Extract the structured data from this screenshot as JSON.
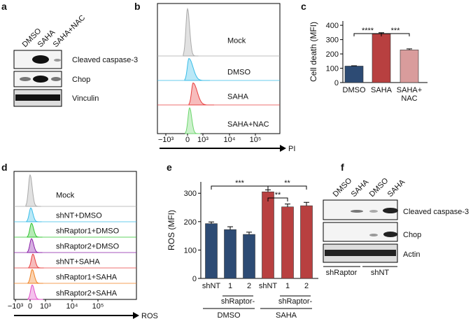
{
  "panels": {
    "a": {
      "letter": "a",
      "lanes": [
        "DMSO",
        "SAHA",
        "SAHA+NAC"
      ],
      "bands": [
        "Cleaved caspase-3",
        "Chop",
        "Vinculin"
      ]
    },
    "b": {
      "letter": "b",
      "samples": [
        "Mock",
        "DMSO",
        "SAHA",
        "SAHA+NAC"
      ],
      "xtick_labels": [
        "−10³",
        "0",
        "10³",
        "10⁴",
        "10⁵"
      ],
      "xlabel": "PI"
    },
    "c": {
      "letter": "c"
    },
    "d": {
      "letter": "d",
      "samples": [
        "Mock",
        "shNT+DMSO",
        "shRaptor1+DMSO",
        "shRaptor2+DMSO",
        "shNT+SAHA",
        "shRaptor1+SAHA",
        "shRaptor2+SAHA"
      ],
      "xtick_labels": [
        "−10³",
        "0",
        "10³",
        "10⁴",
        "10⁵"
      ],
      "xlabel": "ROS"
    },
    "e": {
      "letter": "e"
    },
    "f": {
      "letter": "f",
      "lanes": [
        "DMSO",
        "SAHA",
        "DMSO",
        "SAHA"
      ],
      "bands": [
        "Cleaved caspase-3",
        "Chop",
        "Actin"
      ],
      "groups": [
        "shRaptor",
        "shNT"
      ]
    }
  },
  "chart_data": [
    {
      "type": "bar",
      "ylabel": "Cell death (MFI)",
      "categories": [
        "DMSO",
        "SAHA",
        "SAHA+\nNAC"
      ],
      "values": [
        115,
        340,
        228
      ],
      "errors": [
        2,
        8,
        7
      ],
      "colors": [
        "#2d4b74",
        "#b84040",
        "#d99c9c"
      ],
      "ylim": [
        0,
        430
      ],
      "yticks": [
        0,
        100,
        200,
        300,
        400
      ],
      "annotations": [
        "****",
        "***"
      ]
    },
    {
      "type": "bar",
      "ylabel": "ROS (MFI)",
      "categories": [
        "shNT",
        "1",
        "2",
        "shNT",
        "1",
        "2"
      ],
      "values": [
        193,
        172,
        155,
        305,
        252,
        256
      ],
      "errors": [
        6,
        10,
        8,
        7,
        10,
        12
      ],
      "colors": [
        "#2d4b74",
        "#2d4b74",
        "#2d4b74",
        "#b84040",
        "#b84040",
        "#b84040"
      ],
      "ylim": [
        0,
        340
      ],
      "yticks": [
        0,
        100,
        200,
        300
      ],
      "subgroup_labels": [
        "shRaptor-",
        "shRaptor-"
      ],
      "group_labels": [
        "DMSO",
        "SAHA"
      ],
      "annotations": [
        "***",
        "**",
        "**"
      ]
    }
  ]
}
